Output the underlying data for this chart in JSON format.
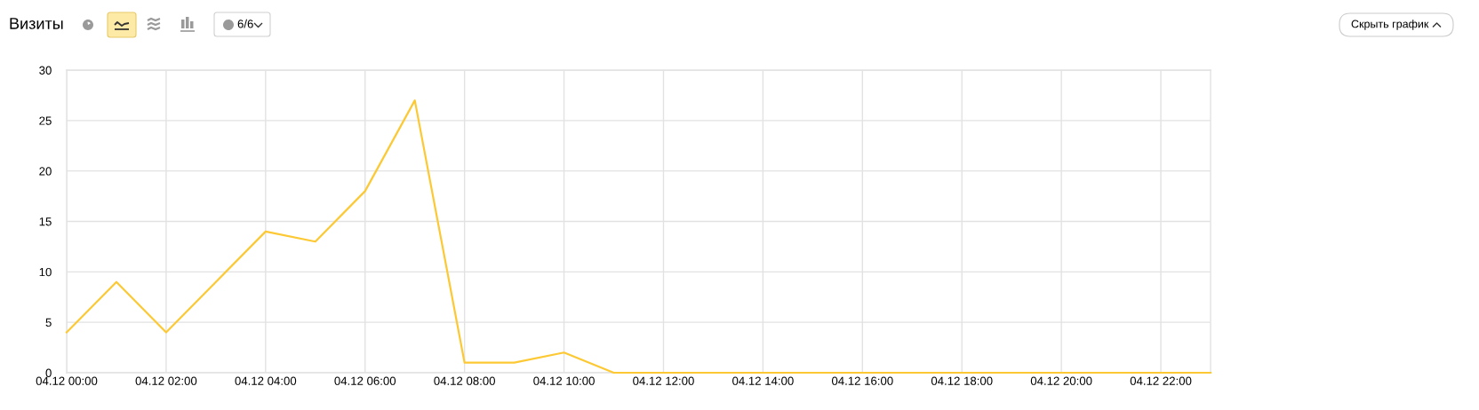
{
  "chart_data": {
    "type": "line",
    "title": "Визиты",
    "annotations": [
      "6/6",
      "Скрыть график"
    ],
    "categories": [
      "04.12 00:00",
      null,
      "04.12 02:00",
      null,
      "04.12 04:00",
      null,
      "04.12 06:00",
      null,
      "04.12 08:00",
      null,
      "04.12 10:00",
      null,
      "04.12 12:00",
      null,
      "04.12 14:00",
      null,
      "04.12 16:00",
      null,
      "04.12 18:00",
      null,
      "04.12 20:00",
      null,
      "04.12 22:00",
      null
    ],
    "series": [
      {
        "color": "#fcc934",
        "values": [
          4,
          9,
          4,
          9,
          14,
          13,
          18,
          27,
          1,
          1,
          2,
          0,
          0,
          0,
          0,
          0,
          0,
          0,
          0,
          0,
          0,
          0,
          0,
          0
        ]
      }
    ],
    "ylim": [
      0,
      30
    ],
    "yticks": [
      0,
      5,
      10,
      15,
      20,
      25,
      30
    ],
    "grid": true,
    "marker": "none",
    "line_style": "solid"
  }
}
